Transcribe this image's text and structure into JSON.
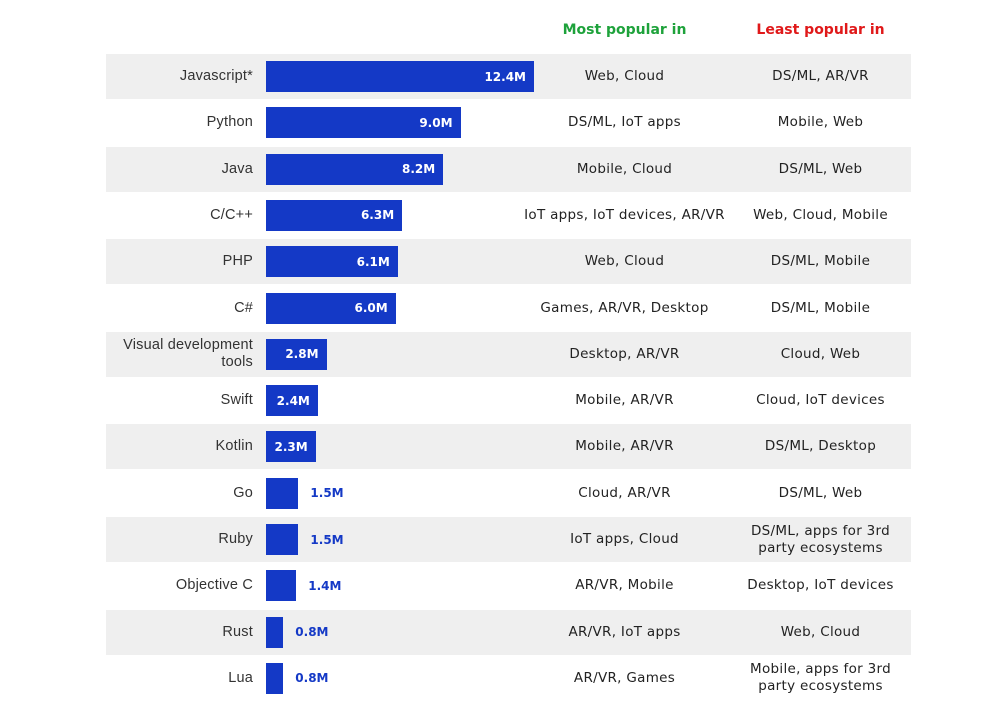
{
  "header": {
    "most_popular": "Most popular in",
    "least_popular": "Least popular in"
  },
  "colors": {
    "bar": "#1439c6",
    "most_header": "#1ea23b",
    "least_header": "#e0191a",
    "row_shade": "#efefef",
    "value_outside": "#1439c6"
  },
  "chart_data": {
    "type": "bar",
    "orientation": "horizontal",
    "unit": "M",
    "xlim": [
      0,
      12.4
    ],
    "categories": [
      "Javascript*",
      "Python",
      "Java",
      "C/C++",
      "PHP",
      "C#",
      "Visual development tools",
      "Swift",
      "Kotlin",
      "Go",
      "Ruby",
      "Objective C",
      "Rust",
      "Lua"
    ],
    "values": [
      12.4,
      9.0,
      8.2,
      6.3,
      6.1,
      6.0,
      2.8,
      2.4,
      2.3,
      1.5,
      1.5,
      1.4,
      0.8,
      0.8
    ],
    "value_labels": [
      "12.4M",
      "9.0M",
      "8.2M",
      "6.3M",
      "6.1M",
      "6.0M",
      "2.8M",
      "2.4M",
      "2.3M",
      "1.5M",
      "1.5M",
      "1.4M",
      "0.8M",
      "0.8M"
    ],
    "most_popular_in": [
      "Web, Cloud",
      "DS/ML, IoT apps",
      "Mobile, Cloud",
      "IoT apps, IoT devices, AR/VR",
      "Web, Cloud",
      "Games, AR/VR, Desktop",
      "Desktop, AR/VR",
      "Mobile, AR/VR",
      "Mobile, AR/VR",
      "Cloud, AR/VR",
      "IoT apps, Cloud",
      "AR/VR, Mobile",
      "AR/VR, IoT apps",
      "AR/VR, Games"
    ],
    "least_popular_in": [
      "DS/ML, AR/VR",
      "Mobile, Web",
      "DS/ML, Web",
      "Web, Cloud, Mobile",
      "DS/ML, Mobile",
      "DS/ML, Mobile",
      "Cloud, Web",
      "Cloud, IoT devices",
      "DS/ML, Desktop",
      "DS/ML, Web",
      "DS/ML, apps for 3rd party ecosystems",
      "Desktop, IoT devices",
      "Web, Cloud",
      "Mobile, apps for 3rd party ecosystems"
    ],
    "grid": false,
    "legend": "none"
  }
}
